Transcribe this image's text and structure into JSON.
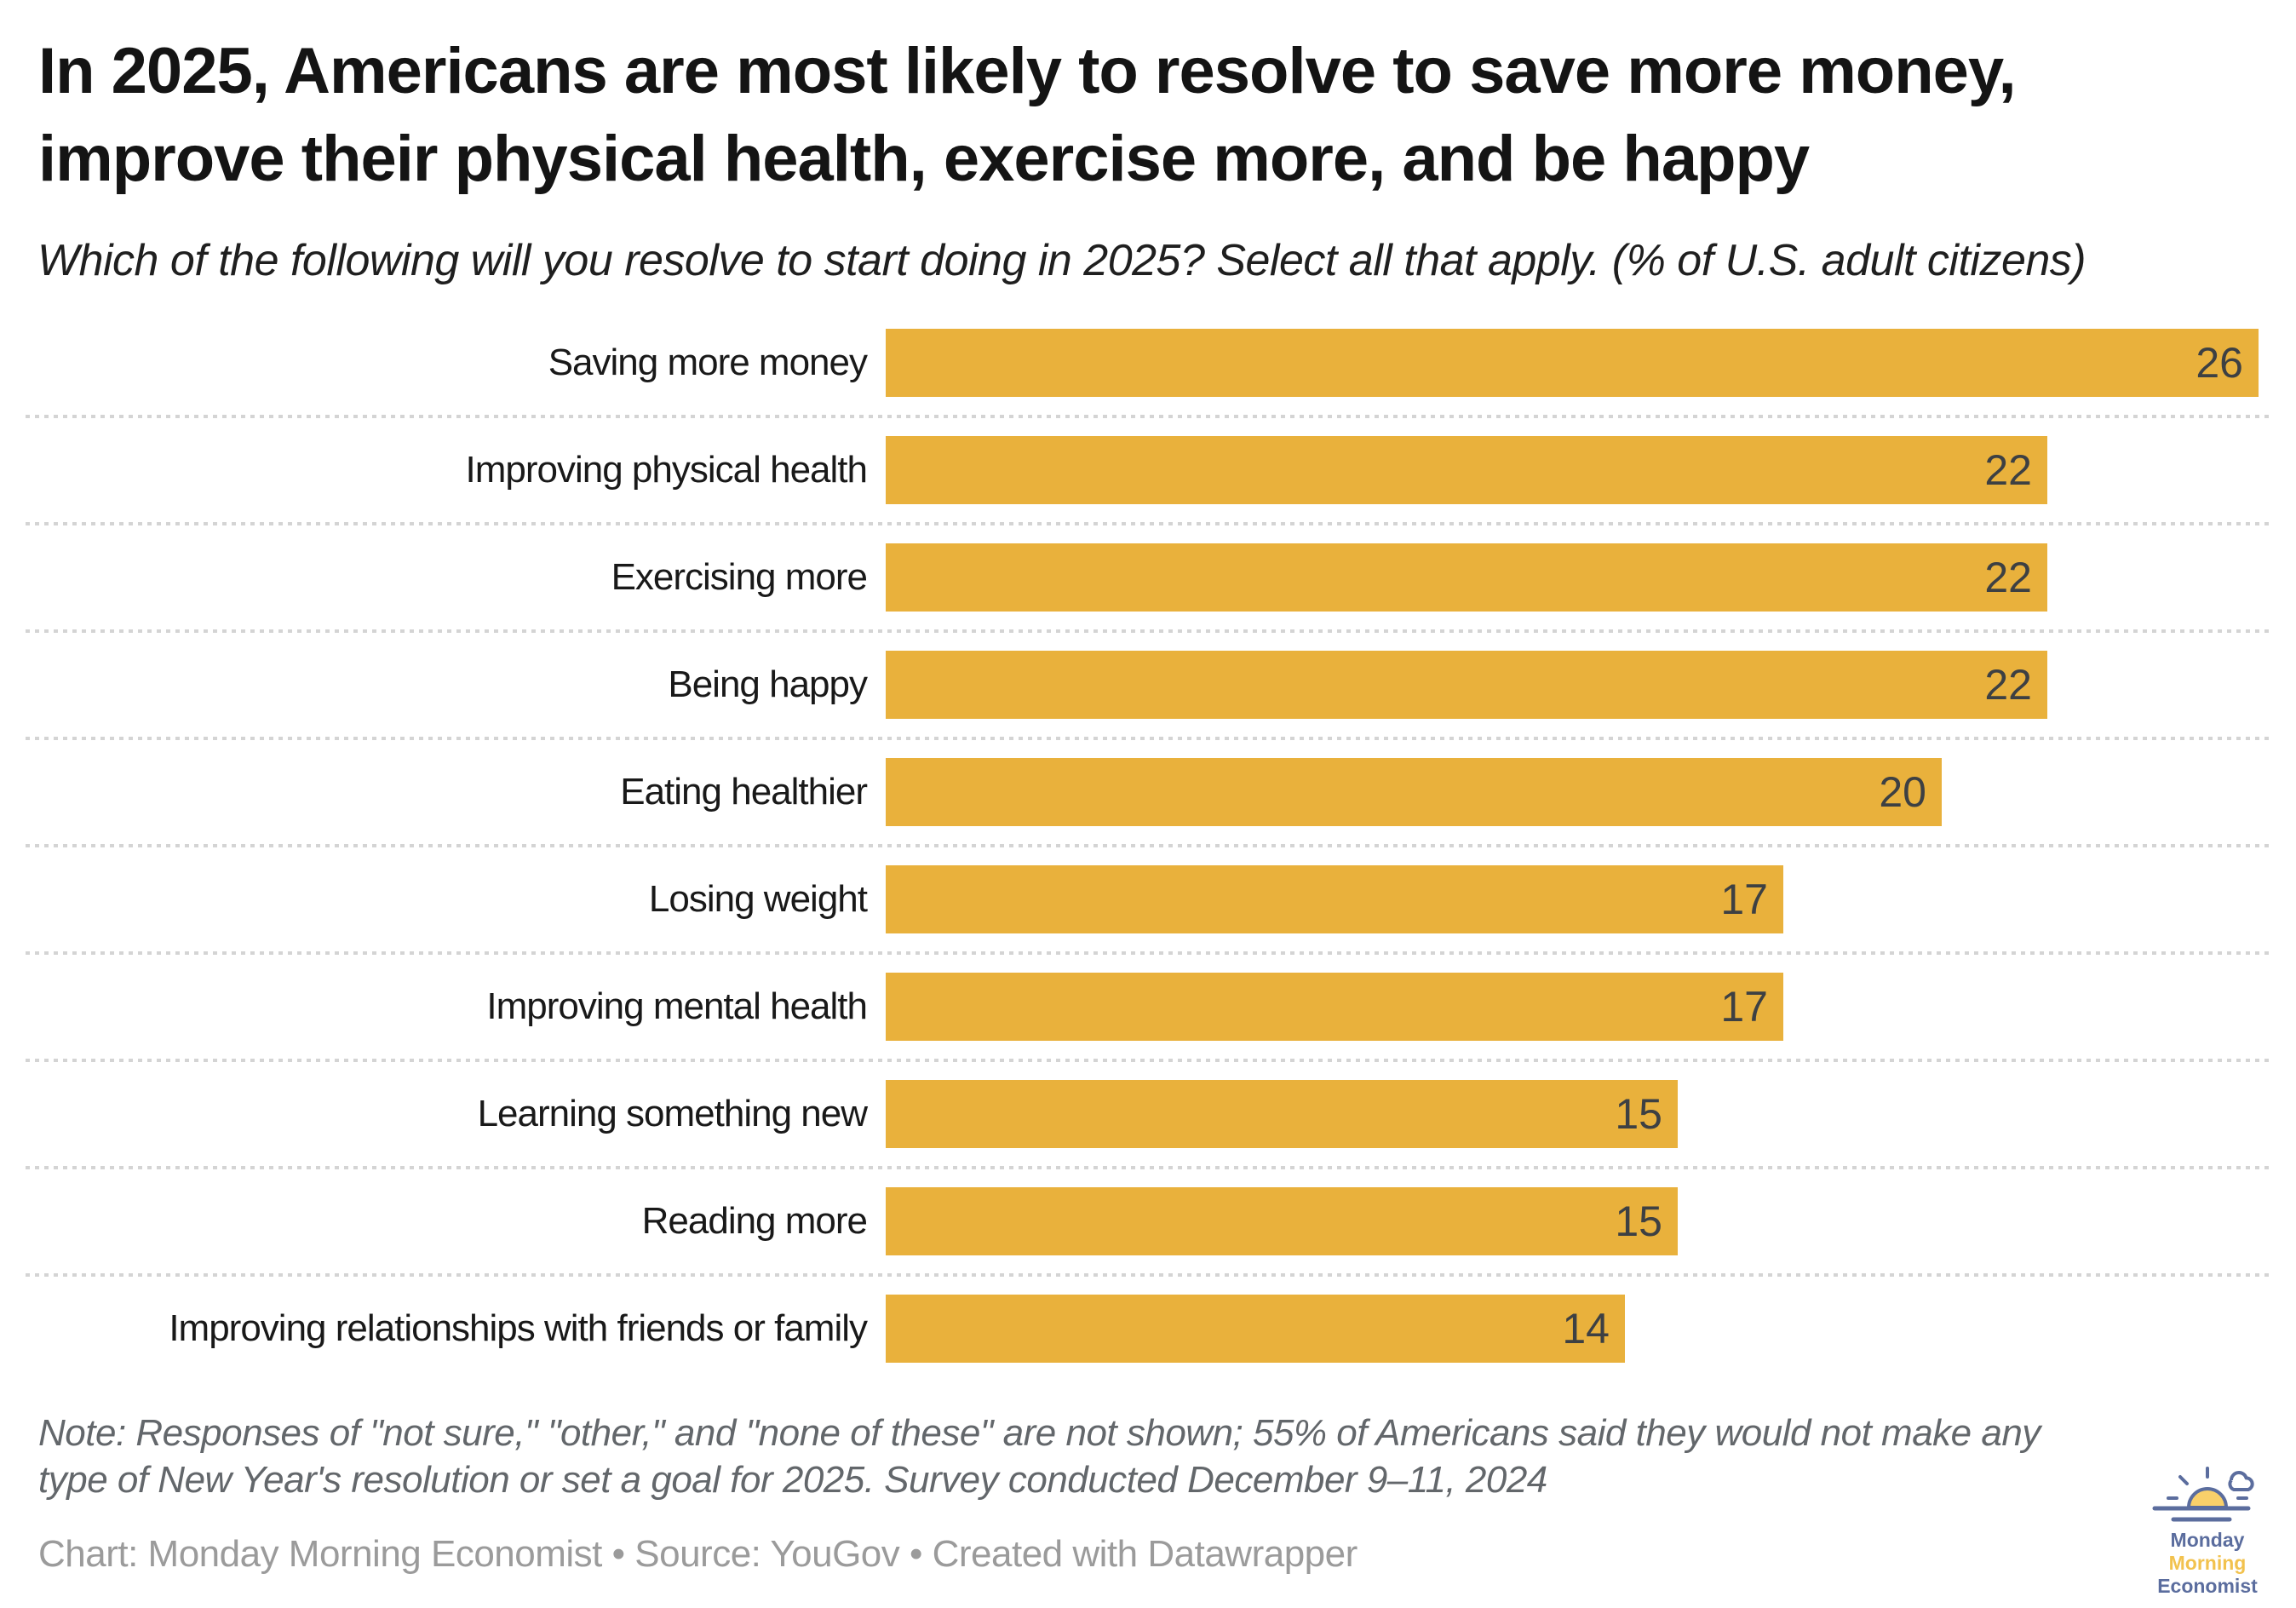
{
  "header": {
    "title_lines": [
      "In 2025, Americans are most likely to resolve to save more money,",
      "improve their physical health, exercise more, and be happy"
    ],
    "subtitle": "Which of the following will you resolve to start doing in 2025? Select all that apply. (% of U.S. adult citizens)"
  },
  "chart_data": {
    "type": "bar",
    "orientation": "horizontal",
    "title": "In 2025, Americans are most likely to resolve to save more money, improve their physical health, exercise more, and be happy",
    "subtitle": "Which of the following will you resolve to start doing in 2025? Select all that apply. (% of U.S. adult citizens)",
    "categories": [
      "Saving more money",
      "Improving physical health",
      "Exercising more",
      "Being happy",
      "Eating healthier",
      "Losing weight",
      "Improving mental health",
      "Learning something new",
      "Reading more",
      "Improving relationships with friends or family"
    ],
    "values": [
      26,
      22,
      22,
      22,
      20,
      17,
      17,
      15,
      15,
      14
    ],
    "xlabel": "",
    "ylabel": "",
    "xlim": [
      0,
      26
    ],
    "value_labels": "inside bar, right aligned",
    "grid": "dotted horizontal separators between rows",
    "legend": "none",
    "bar_color": "#e9b13c",
    "value_label_color": "#3d4043"
  },
  "footer": {
    "note_lines": [
      "Note: Responses of \"not sure,\" \"other,\" and \"none of these\" are not shown; 55% of Americans said they would not make any",
      "type of New Year's resolution or set a goal for 2025. Survey conducted December 9–11, 2024"
    ],
    "credit": "Chart: Monday Morning Economist • Source: YouGov • Created with Datawrapper"
  },
  "logo": {
    "lines": [
      "Monday",
      "Morning",
      "Economist"
    ],
    "colors": {
      "blue": "#5b6d9e",
      "yellow": "#f2c24e",
      "sun_fill": "#f9d06a"
    }
  }
}
